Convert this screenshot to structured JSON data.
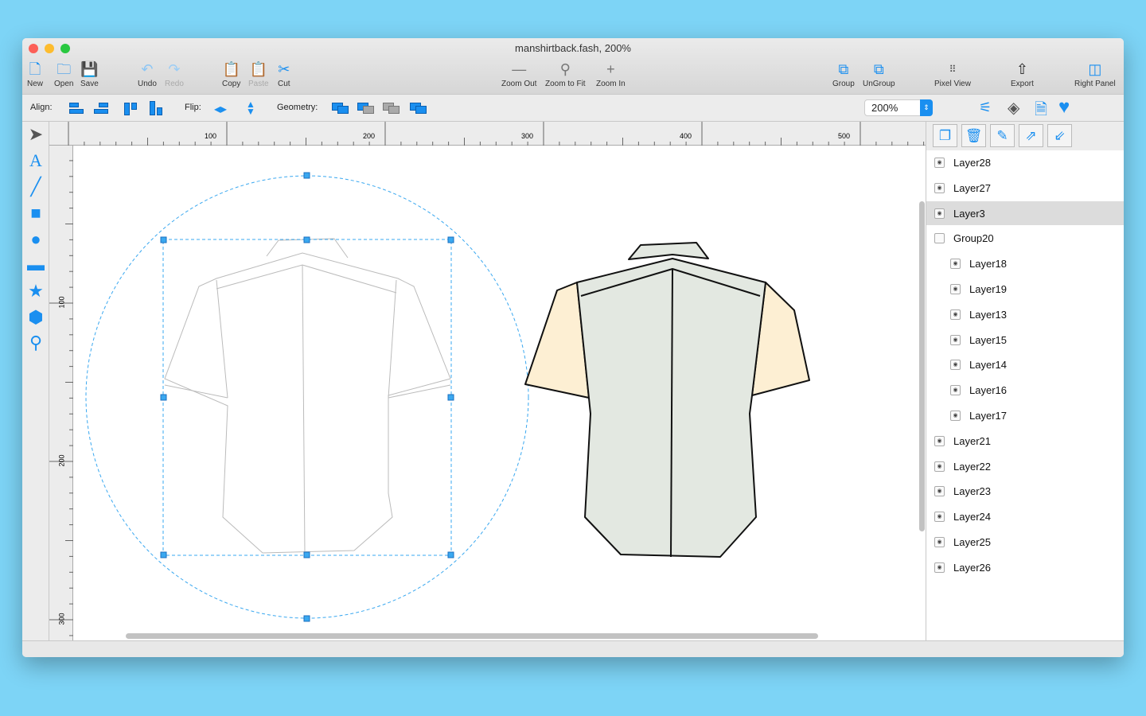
{
  "window": {
    "title": "manshirtback.fash, 200%"
  },
  "toolbar": {
    "new": "New",
    "open": "Open",
    "save": "Save",
    "undo": "Undo",
    "redo": "Redo",
    "copy": "Copy",
    "paste": "Paste",
    "cut": "Cut",
    "zoom_out": "Zoom Out",
    "zoom_fit": "Zoom to Fit",
    "zoom_in": "Zoom In",
    "group": "Group",
    "ungroup": "UnGroup",
    "pixel_view": "Pixel View",
    "export": "Export",
    "right_panel": "Right Panel"
  },
  "bar2": {
    "align": "Align:",
    "flip": "Flip:",
    "geometry": "Geometry:",
    "zoom": "200%"
  },
  "ruler": {
    "h": [
      "100",
      "200",
      "300",
      "400",
      "500"
    ],
    "v": [
      "100",
      "200",
      "300"
    ]
  },
  "layers": [
    {
      "name": "Layer28",
      "indent": 0
    },
    {
      "name": "Layer27",
      "indent": 0
    },
    {
      "name": "Layer3",
      "indent": 0,
      "selected": true
    },
    {
      "name": "Group20",
      "indent": 0,
      "group": true
    },
    {
      "name": "Layer18",
      "indent": 1
    },
    {
      "name": "Layer19",
      "indent": 1
    },
    {
      "name": "Layer13",
      "indent": 1
    },
    {
      "name": "Layer15",
      "indent": 1
    },
    {
      "name": "Layer14",
      "indent": 1
    },
    {
      "name": "Layer16",
      "indent": 1
    },
    {
      "name": "Layer17",
      "indent": 1
    },
    {
      "name": "Layer21",
      "indent": 0
    },
    {
      "name": "Layer22",
      "indent": 0
    },
    {
      "name": "Layer23",
      "indent": 0
    },
    {
      "name": "Layer24",
      "indent": 0
    },
    {
      "name": "Layer25",
      "indent": 0
    },
    {
      "name": "Layer26",
      "indent": 0
    }
  ],
  "colors": {
    "accent": "#1a8ff0",
    "sleeve": "#fdefd3",
    "body": "#e3e8e1"
  }
}
